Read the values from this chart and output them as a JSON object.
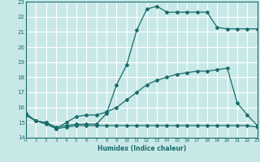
{
  "line1_x": [
    0,
    1,
    2,
    3,
    4,
    5,
    6,
    7,
    8,
    9,
    10,
    11,
    12,
    13,
    14,
    15,
    16,
    17,
    18,
    19,
    20,
    21,
    22,
    23
  ],
  "line1_y": [
    15.6,
    15.1,
    15.0,
    14.7,
    14.8,
    14.9,
    14.9,
    14.9,
    15.6,
    17.5,
    18.8,
    21.1,
    22.5,
    22.7,
    22.3,
    22.3,
    22.3,
    22.3,
    22.3,
    21.3,
    21.2,
    21.2,
    21.2,
    21.2
  ],
  "line2_x": [
    0,
    1,
    2,
    3,
    4,
    5,
    6,
    7,
    8,
    9,
    10,
    11,
    12,
    13,
    14,
    15,
    16,
    17,
    18,
    19,
    20,
    21,
    22,
    23
  ],
  "line2_y": [
    15.5,
    15.1,
    15.0,
    14.6,
    15.0,
    15.4,
    15.5,
    15.5,
    15.7,
    16.0,
    16.5,
    17.0,
    17.5,
    17.8,
    18.0,
    18.2,
    18.3,
    18.4,
    18.4,
    18.5,
    18.6,
    16.3,
    15.5,
    14.8
  ],
  "line3_x": [
    0,
    1,
    2,
    3,
    4,
    5,
    6,
    7,
    8,
    9,
    10,
    11,
    12,
    13,
    14,
    15,
    16,
    17,
    18,
    19,
    20,
    21,
    22,
    23
  ],
  "line3_y": [
    15.5,
    15.1,
    14.9,
    14.6,
    14.7,
    14.8,
    14.8,
    14.8,
    14.8,
    14.8,
    14.8,
    14.8,
    14.8,
    14.8,
    14.8,
    14.8,
    14.8,
    14.8,
    14.8,
    14.8,
    14.8,
    14.8,
    14.8,
    14.7
  ],
  "color": "#1a6b6b",
  "bg_color": "#c8e8e8",
  "grid_color": "#ffffff",
  "xlabel": "Humidex (Indice chaleur)",
  "ylim": [
    14,
    23
  ],
  "xlim": [
    0,
    23
  ],
  "yticks": [
    14,
    15,
    16,
    17,
    18,
    19,
    20,
    21,
    22,
    23
  ],
  "xticks": [
    0,
    1,
    2,
    3,
    4,
    5,
    6,
    7,
    8,
    9,
    10,
    11,
    12,
    13,
    14,
    15,
    16,
    17,
    18,
    19,
    20,
    21,
    22,
    23
  ]
}
